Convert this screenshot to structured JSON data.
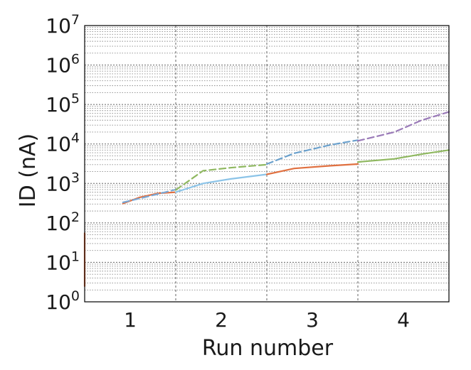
{
  "chart_data": {
    "type": "line",
    "title": "",
    "xlabel": "Run number",
    "ylabel": "ID (nA)",
    "yscale": "log",
    "ylim": [
      1,
      10000000
    ],
    "xlim": [
      0.5,
      4.5
    ],
    "grid": true,
    "legend": "none",
    "x_ticks": [
      {
        "label": "1",
        "value": 1
      },
      {
        "label": "2",
        "value": 2
      },
      {
        "label": "3",
        "value": 3
      },
      {
        "label": "4",
        "value": 4
      }
    ],
    "y_ticks": [
      {
        "base": "10",
        "exp": "0",
        "value": 1
      },
      {
        "base": "10",
        "exp": "1",
        "value": 10
      },
      {
        "base": "10",
        "exp": "2",
        "value": 100
      },
      {
        "base": "10",
        "exp": "3",
        "value": 1000
      },
      {
        "base": "10",
        "exp": "4",
        "value": 10000
      },
      {
        "base": "10",
        "exp": "5",
        "value": 100000
      },
      {
        "base": "10",
        "exp": "6",
        "value": 1000000
      },
      {
        "base": "10",
        "exp": "7",
        "value": 10000000
      }
    ],
    "run_boundaries": [
      1.5,
      2.5,
      3.5
    ],
    "series": [
      {
        "color": "#e07040",
        "style": "solid",
        "points": [
          [
            0.5,
            2.5
          ],
          [
            0.5,
            55
          ]
        ]
      },
      {
        "color": "#e07040",
        "style": "solid",
        "points": [
          [
            0.92,
            310
          ],
          [
            1.1,
            440
          ],
          [
            1.3,
            560
          ],
          [
            1.5,
            600
          ]
        ]
      },
      {
        "color": "#7aa8d6",
        "style": "dashed",
        "points": [
          [
            0.92,
            330
          ],
          [
            1.2,
            470
          ],
          [
            1.5,
            700
          ]
        ]
      },
      {
        "color": "#8cc4e8",
        "style": "solid",
        "points": [
          [
            1.5,
            600
          ],
          [
            1.8,
            1000
          ],
          [
            2.1,
            1300
          ],
          [
            2.5,
            1700
          ]
        ]
      },
      {
        "color": "#8fb860",
        "style": "dashed",
        "points": [
          [
            1.5,
            680
          ],
          [
            1.8,
            2100
          ],
          [
            2.1,
            2500
          ],
          [
            2.5,
            3000
          ]
        ]
      },
      {
        "color": "#6aa0cc",
        "style": "dashed",
        "points": [
          [
            2.5,
            3100
          ],
          [
            2.8,
            5800
          ],
          [
            3.2,
            9500
          ],
          [
            3.5,
            12500
          ]
        ]
      },
      {
        "color": "#e07040",
        "style": "solid",
        "points": [
          [
            2.5,
            1700
          ],
          [
            2.8,
            2400
          ],
          [
            3.2,
            2800
          ],
          [
            3.5,
            3100
          ]
        ]
      },
      {
        "color": "#9a7ab8",
        "style": "dashed",
        "points": [
          [
            3.5,
            12000
          ],
          [
            3.9,
            20000
          ],
          [
            4.2,
            40000
          ],
          [
            4.5,
            65000
          ]
        ]
      },
      {
        "color": "#8fb860",
        "style": "solid",
        "points": [
          [
            3.5,
            3500
          ],
          [
            3.9,
            4200
          ],
          [
            4.2,
            5500
          ],
          [
            4.5,
            7000
          ]
        ]
      }
    ]
  }
}
